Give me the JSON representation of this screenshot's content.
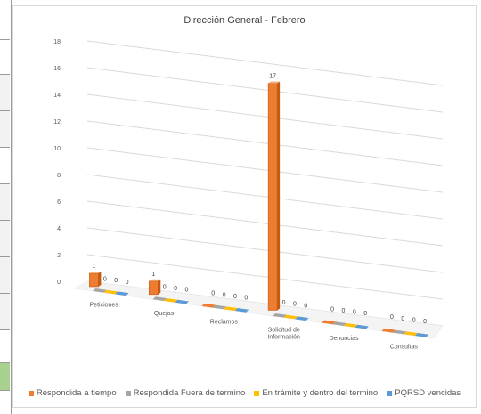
{
  "chart_data": {
    "type": "bar",
    "title": "Dirección General - Febrero",
    "categories": [
      "Peticiones",
      "Quejas",
      "Reclamos",
      "Solicitud de\nInformación",
      "Denuncias",
      "Consultas"
    ],
    "series": [
      {
        "name": "Respondida a tiempo",
        "values": [
          1,
          1,
          0,
          17,
          0,
          0
        ],
        "color": "#ED7D31"
      },
      {
        "name": "Respondida Fuera de termino",
        "values": [
          0,
          0,
          0,
          0,
          0,
          0
        ],
        "color": "#A5A5A5"
      },
      {
        "name": "En trámite y dentro del termino",
        "values": [
          0,
          0,
          0,
          0,
          0,
          0
        ],
        "color": "#FFC000"
      },
      {
        "name": "PQRSD vencidas",
        "values": [
          0,
          0,
          0,
          0,
          0,
          0
        ],
        "color": "#5B9BD5"
      }
    ],
    "ylim": [
      0,
      18
    ],
    "yticks": [
      0,
      2,
      4,
      6,
      8,
      10,
      12,
      14,
      16,
      18
    ],
    "grid": true,
    "legend_position": "bottom",
    "style": "3d-perspective"
  }
}
